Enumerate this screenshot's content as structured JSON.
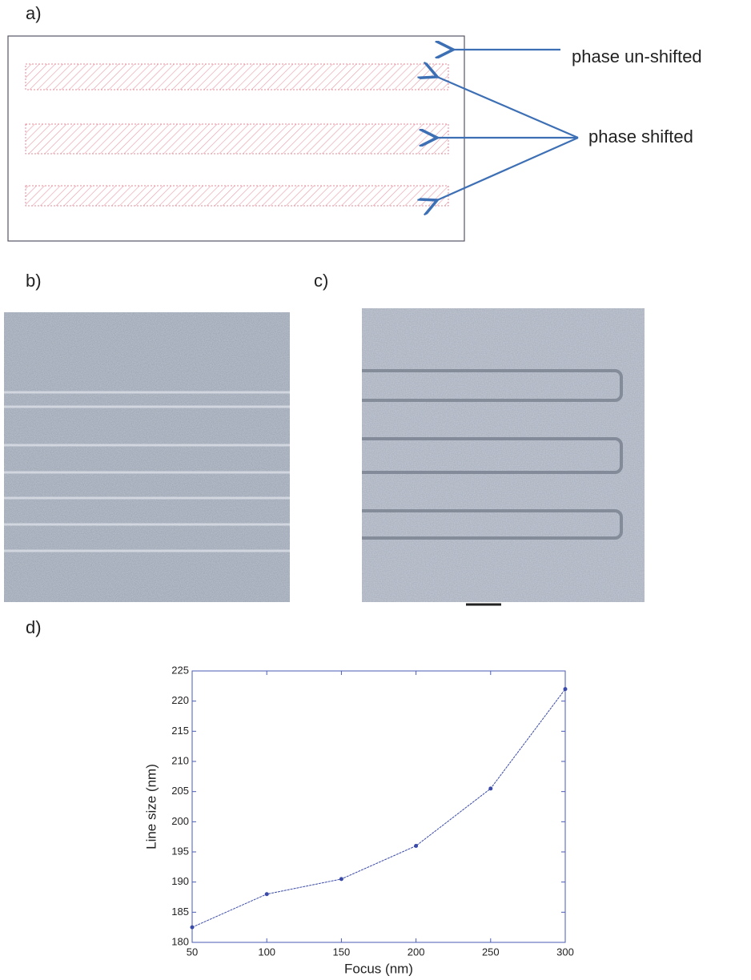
{
  "panels": {
    "a": {
      "label": "a)",
      "annotations": [
        "phase un-shifted",
        "phase shifted"
      ]
    },
    "b": {
      "label": "b)"
    },
    "c": {
      "label": "c)"
    },
    "d": {
      "label": "d)"
    }
  },
  "chart_data": {
    "type": "line",
    "x_label": "Focus  (nm)",
    "y_label": "Line size (nm)",
    "x": [
      50,
      100,
      150,
      200,
      250,
      300
    ],
    "values": [
      182.5,
      188,
      190.5,
      196,
      205.5,
      222
    ],
    "color": "#3a4aa8",
    "xlim": [
      50,
      300
    ],
    "ylim": [
      180,
      225
    ],
    "xticks": [
      50,
      100,
      150,
      200,
      250,
      300
    ],
    "yticks": [
      180,
      185,
      190,
      195,
      200,
      205,
      210,
      215,
      220,
      225
    ]
  }
}
